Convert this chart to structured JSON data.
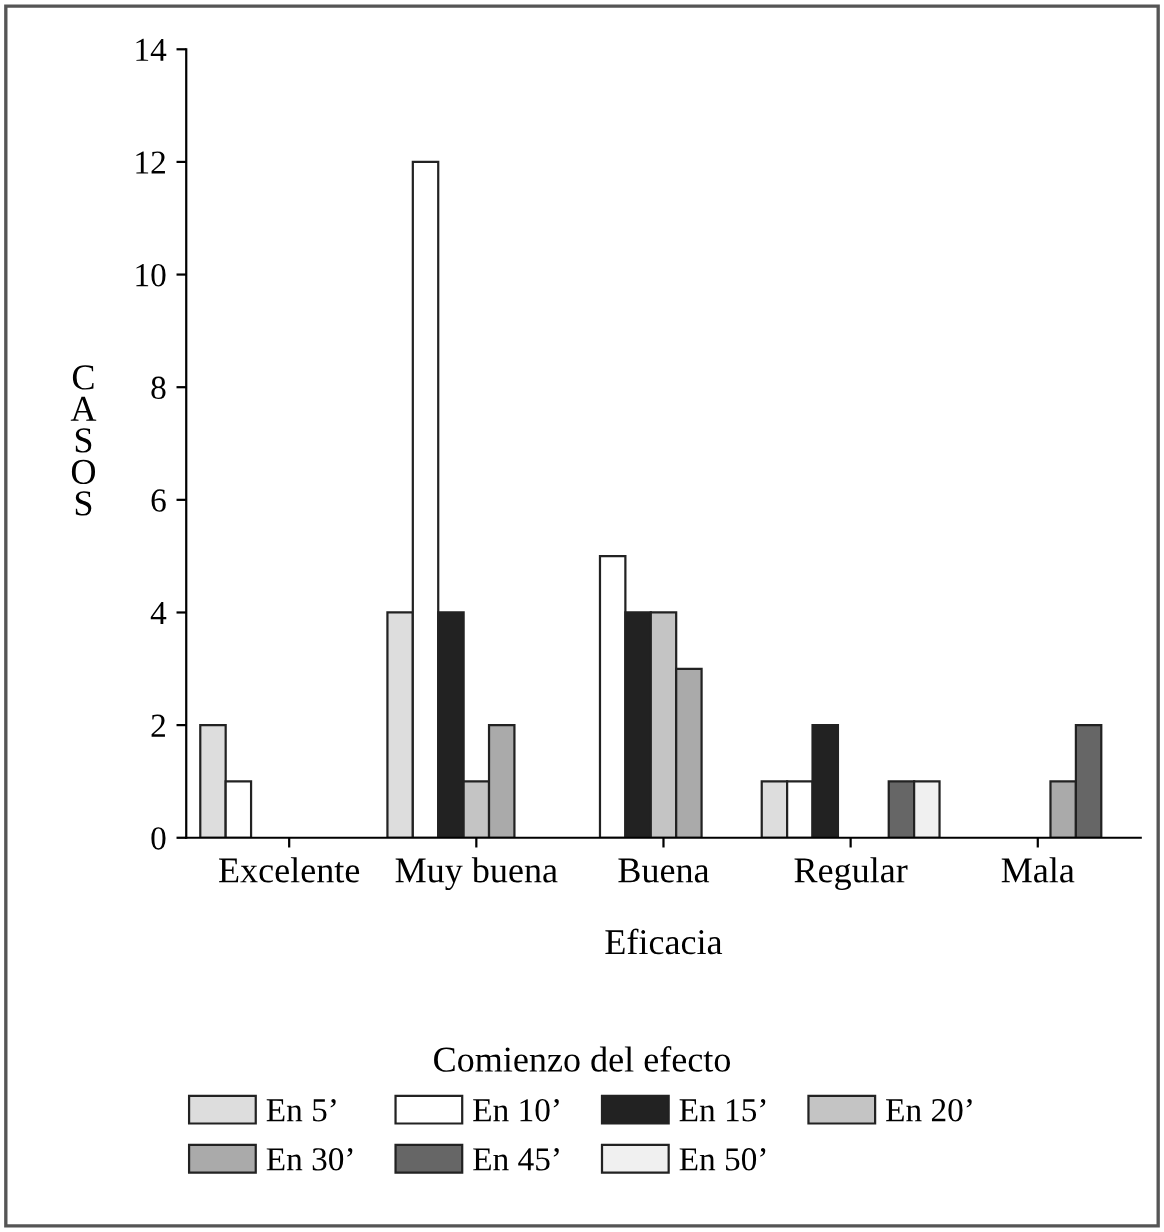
{
  "chart_data": {
    "type": "bar",
    "xlabel": "Eficacia",
    "ylabel": "CASOS",
    "legend_title": "Comienzo del efecto",
    "categories": [
      "Excelente",
      "Muy buena",
      "Buena",
      "Regular",
      "Mala"
    ],
    "series": [
      {
        "name": "En 5’",
        "color": "#dddddd",
        "values": [
          2,
          4,
          0,
          1,
          0
        ]
      },
      {
        "name": "En 10’",
        "color": "#ffffff",
        "values": [
          1,
          12,
          5,
          1,
          0
        ]
      },
      {
        "name": "En 15’",
        "color": "#222222",
        "values": [
          0,
          4,
          4,
          2,
          0
        ]
      },
      {
        "name": "En 20’",
        "color": "#c4c4c4",
        "values": [
          0,
          1,
          4,
          0,
          0
        ]
      },
      {
        "name": "En 30’",
        "color": "#aaaaaa",
        "values": [
          0,
          2,
          3,
          0,
          1
        ]
      },
      {
        "name": "En 45’",
        "color": "#666666",
        "values": [
          0,
          0,
          0,
          1,
          2
        ]
      },
      {
        "name": "En 50’",
        "color": "#f0f0f0",
        "values": [
          0,
          0,
          0,
          1,
          0
        ]
      }
    ],
    "ylim": [
      0,
      14
    ],
    "yticks": [
      0,
      2,
      4,
      6,
      8,
      10,
      12,
      14
    ],
    "grid": false,
    "legend": "bottom"
  }
}
